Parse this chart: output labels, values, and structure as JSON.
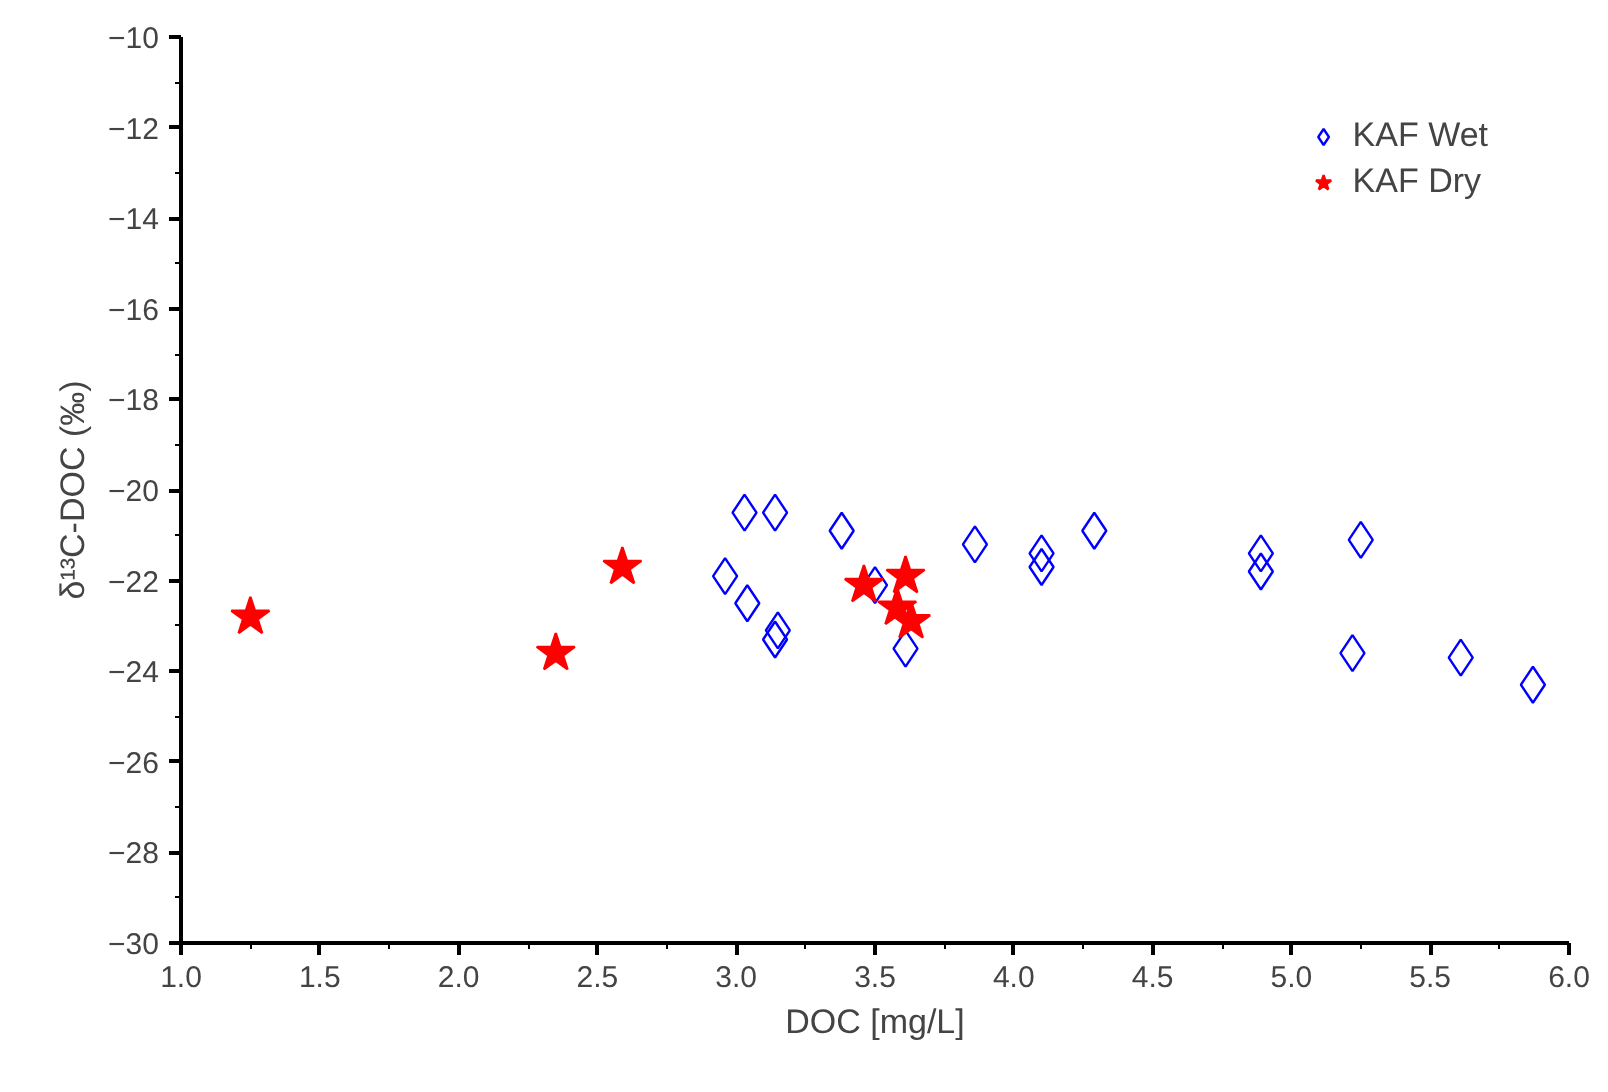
{
  "chart_data": {
    "type": "scatter",
    "xlabel": "DOC [mg/L]",
    "ylabel": "δ¹³C-DOC (‰)",
    "xlim": [
      1.0,
      6.0
    ],
    "xticks": [
      {
        "value": 1.0,
        "label": "1.0"
      },
      {
        "value": 1.5,
        "label": "1.5"
      },
      {
        "value": 2.0,
        "label": "2.0"
      },
      {
        "value": 2.5,
        "label": "2.5"
      },
      {
        "value": 3.0,
        "label": "3.0"
      },
      {
        "value": 3.5,
        "label": "3.5"
      },
      {
        "value": 4.0,
        "label": "4.0"
      },
      {
        "value": 4.5,
        "label": "4.5"
      },
      {
        "value": 5.0,
        "label": "5.0"
      },
      {
        "value": 5.5,
        "label": "5.5"
      },
      {
        "value": 6.0,
        "label": "6.0"
      }
    ],
    "ylim": [
      -30,
      -10
    ],
    "yticks": [
      -30,
      -28,
      -26,
      -24,
      -22,
      -20,
      -18,
      -16,
      -14,
      -12,
      -10
    ],
    "grid": false,
    "legend": "top right",
    "series": [
      {
        "name": "KAF Wet",
        "color": "#0000ff",
        "marker": "diamond",
        "x": [
          3.03,
          3.14,
          3.38,
          2.96,
          3.04,
          3.15,
          3.14,
          3.5,
          3.61,
          3.86,
          4.1,
          4.1,
          4.29,
          4.89,
          4.89,
          5.25,
          5.22,
          5.61,
          5.87
        ],
        "values": [
          -20.5,
          -20.5,
          -20.9,
          -21.9,
          -22.5,
          -23.1,
          -23.3,
          -22.1,
          -23.5,
          -21.2,
          -21.4,
          -21.7,
          -20.9,
          -21.4,
          -21.8,
          -21.1,
          -23.6,
          -23.7,
          -24.3
        ]
      },
      {
        "name": "KAF Dry",
        "color": "#ff0000",
        "marker": "star",
        "x": [
          1.25,
          2.35,
          2.59,
          3.46,
          3.61,
          3.58,
          3.63
        ],
        "values": [
          -22.8,
          -23.6,
          -21.7,
          -22.1,
          -21.9,
          -22.6,
          -22.9
        ]
      }
    ]
  }
}
